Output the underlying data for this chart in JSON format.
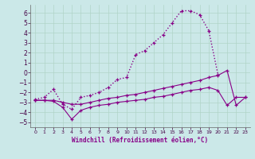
{
  "background_color": "#cbe8e8",
  "grid_color": "#b0d4c8",
  "line_color": "#880088",
  "xlabel": "Windchill (Refroidissement éolien,°C)",
  "xlim": [
    -0.5,
    23.5
  ],
  "ylim": [
    -5.5,
    6.8
  ],
  "yticks": [
    -5,
    -4,
    -3,
    -2,
    -1,
    0,
    1,
    2,
    3,
    4,
    5,
    6
  ],
  "xticks": [
    0,
    1,
    2,
    3,
    4,
    5,
    6,
    7,
    8,
    9,
    10,
    11,
    12,
    13,
    14,
    15,
    16,
    17,
    18,
    19,
    20,
    21,
    22,
    23
  ],
  "series": [
    {
      "x": [
        0,
        1,
        2,
        3,
        4,
        5,
        6,
        7,
        8,
        9,
        10,
        11,
        12,
        13,
        14,
        15,
        16,
        17,
        18,
        19,
        20
      ],
      "y": [
        -2.7,
        -2.5,
        -1.7,
        -3.2,
        -3.7,
        -2.5,
        -2.3,
        -2.0,
        -1.5,
        -0.7,
        -0.5,
        1.8,
        2.2,
        3.0,
        3.8,
        5.0,
        6.2,
        6.2,
        5.8,
        4.2,
        -0.2
      ],
      "linestyle": "dotted",
      "linewidth": 1.0
    },
    {
      "x": [
        0,
        1,
        2,
        3,
        4,
        5,
        6,
        7,
        8,
        9,
        10,
        11,
        12,
        13,
        14,
        15,
        16,
        17,
        18,
        19,
        20,
        21,
        22,
        23
      ],
      "y": [
        -2.8,
        -2.8,
        -2.8,
        -3.0,
        -3.2,
        -3.2,
        -3.0,
        -2.8,
        -2.6,
        -2.5,
        -2.3,
        -2.2,
        -2.0,
        -1.8,
        -1.6,
        -1.4,
        -1.2,
        -1.0,
        -0.8,
        -0.5,
        -0.3,
        0.2,
        -3.3,
        -2.5
      ],
      "linestyle": "solid",
      "linewidth": 0.8
    },
    {
      "x": [
        0,
        1,
        2,
        3,
        4,
        5,
        6,
        7,
        8,
        9,
        10,
        11,
        12,
        13,
        14,
        15,
        16,
        17,
        18,
        19,
        20,
        21,
        22,
        23
      ],
      "y": [
        -2.8,
        -2.8,
        -2.9,
        -3.5,
        -4.7,
        -3.8,
        -3.5,
        -3.3,
        -3.2,
        -3.0,
        -2.9,
        -2.8,
        -2.7,
        -2.5,
        -2.4,
        -2.2,
        -2.0,
        -1.8,
        -1.7,
        -1.5,
        -1.8,
        -3.3,
        -2.5,
        -2.5
      ],
      "linestyle": "solid",
      "linewidth": 0.8
    }
  ]
}
